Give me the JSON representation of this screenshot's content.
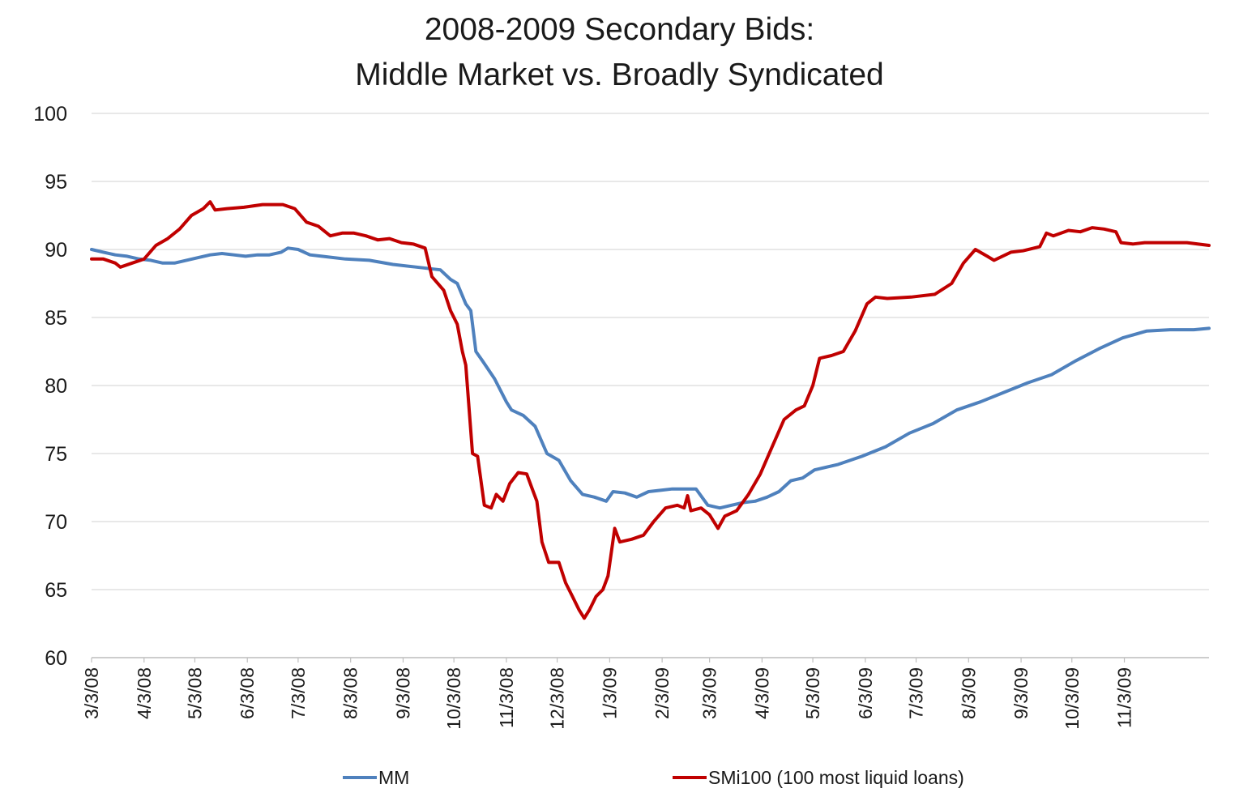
{
  "chart_data": {
    "type": "line",
    "title_line1": "2008-2009 Secondary Bids:",
    "title_line2": "Middle Market vs. Broadly Syndicated",
    "xlabel": "",
    "ylabel": "",
    "ylim": [
      60,
      100
    ],
    "yticks": [
      "100",
      "95",
      "90",
      "85",
      "80",
      "75",
      "70",
      "65",
      "60"
    ],
    "ytick_values": [
      100,
      95,
      90,
      85,
      80,
      75,
      70,
      65,
      60
    ],
    "xlim": [
      "2008-03-03",
      "2009-12-23"
    ],
    "xticks": [
      "3/3/08",
      "4/3/08",
      "5/3/08",
      "6/3/08",
      "7/3/08",
      "8/3/08",
      "9/3/08",
      "10/3/08",
      "11/3/08",
      "12/3/08",
      "1/3/09",
      "2/3/09",
      "3/3/09",
      "4/3/09",
      "5/3/09",
      "6/3/09",
      "7/3/09",
      "8/3/09",
      "9/3/09",
      "10/3/09",
      "11/3/09"
    ],
    "grid": "horizontal",
    "legend_position": "bottom",
    "series": [
      {
        "name": "MM",
        "color": "#4f81bd",
        "points": [
          [
            "2008-03-03",
            90.0
          ],
          [
            "2008-03-10",
            89.8
          ],
          [
            "2008-03-17",
            89.6
          ],
          [
            "2008-03-24",
            89.5
          ],
          [
            "2008-03-31",
            89.3
          ],
          [
            "2008-04-07",
            89.2
          ],
          [
            "2008-04-14",
            89.0
          ],
          [
            "2008-04-21",
            89.0
          ],
          [
            "2008-04-28",
            89.2
          ],
          [
            "2008-05-05",
            89.4
          ],
          [
            "2008-05-12",
            89.6
          ],
          [
            "2008-05-19",
            89.7
          ],
          [
            "2008-05-26",
            89.6
          ],
          [
            "2008-06-02",
            89.5
          ],
          [
            "2008-06-09",
            89.6
          ],
          [
            "2008-06-16",
            89.6
          ],
          [
            "2008-06-23",
            89.8
          ],
          [
            "2008-06-27",
            90.1
          ],
          [
            "2008-07-03",
            90.0
          ],
          [
            "2008-07-10",
            89.6
          ],
          [
            "2008-07-17",
            89.5
          ],
          [
            "2008-07-31",
            89.3
          ],
          [
            "2008-08-14",
            89.2
          ],
          [
            "2008-08-28",
            88.9
          ],
          [
            "2008-09-11",
            88.7
          ],
          [
            "2008-09-25",
            88.5
          ],
          [
            "2008-10-01",
            87.8
          ],
          [
            "2008-10-05",
            87.5
          ],
          [
            "2008-10-10",
            86.0
          ],
          [
            "2008-10-13",
            85.5
          ],
          [
            "2008-10-16",
            82.5
          ],
          [
            "2008-10-20",
            81.8
          ],
          [
            "2008-10-27",
            80.5
          ],
          [
            "2008-11-03",
            78.8
          ],
          [
            "2008-11-06",
            78.2
          ],
          [
            "2008-11-13",
            77.8
          ],
          [
            "2008-11-20",
            77.0
          ],
          [
            "2008-11-27",
            75.0
          ],
          [
            "2008-12-04",
            74.5
          ],
          [
            "2008-12-11",
            73.0
          ],
          [
            "2008-12-18",
            72.0
          ],
          [
            "2008-12-25",
            71.8
          ],
          [
            "2009-01-01",
            71.5
          ],
          [
            "2009-01-05",
            72.2
          ],
          [
            "2009-01-12",
            72.1
          ],
          [
            "2009-01-19",
            71.8
          ],
          [
            "2009-01-26",
            72.2
          ],
          [
            "2009-02-02",
            72.3
          ],
          [
            "2009-02-09",
            72.4
          ],
          [
            "2009-02-16",
            72.4
          ],
          [
            "2009-02-23",
            72.4
          ],
          [
            "2009-03-02",
            71.2
          ],
          [
            "2009-03-09",
            71.0
          ],
          [
            "2009-03-16",
            71.2
          ],
          [
            "2009-03-23",
            71.4
          ],
          [
            "2009-03-30",
            71.5
          ],
          [
            "2009-04-06",
            71.8
          ],
          [
            "2009-04-13",
            72.2
          ],
          [
            "2009-04-20",
            73.0
          ],
          [
            "2009-04-27",
            73.2
          ],
          [
            "2009-05-04",
            73.8
          ],
          [
            "2009-05-18",
            74.2
          ],
          [
            "2009-06-01",
            74.8
          ],
          [
            "2009-06-15",
            75.5
          ],
          [
            "2009-06-29",
            76.5
          ],
          [
            "2009-07-13",
            77.2
          ],
          [
            "2009-07-27",
            78.2
          ],
          [
            "2009-08-10",
            78.8
          ],
          [
            "2009-08-24",
            79.5
          ],
          [
            "2009-09-07",
            80.2
          ],
          [
            "2009-09-21",
            80.8
          ],
          [
            "2009-10-05",
            81.8
          ],
          [
            "2009-10-19",
            82.7
          ],
          [
            "2009-11-02",
            83.5
          ],
          [
            "2009-11-16",
            84.0
          ],
          [
            "2009-11-30",
            84.1
          ],
          [
            "2009-12-14",
            84.1
          ],
          [
            "2009-12-23",
            84.2
          ]
        ]
      },
      {
        "name": "SMi100 (100 most liquid loans)",
        "color": "#c00000",
        "points": [
          [
            "2008-03-03",
            89.3
          ],
          [
            "2008-03-10",
            89.3
          ],
          [
            "2008-03-17",
            89.0
          ],
          [
            "2008-03-20",
            88.7
          ],
          [
            "2008-03-27",
            89.0
          ],
          [
            "2008-04-03",
            89.3
          ],
          [
            "2008-04-10",
            90.3
          ],
          [
            "2008-04-17",
            90.8
          ],
          [
            "2008-04-24",
            91.5
          ],
          [
            "2008-05-01",
            92.5
          ],
          [
            "2008-05-08",
            93.0
          ],
          [
            "2008-05-12",
            93.5
          ],
          [
            "2008-05-15",
            92.9
          ],
          [
            "2008-05-22",
            93.0
          ],
          [
            "2008-06-01",
            93.1
          ],
          [
            "2008-06-12",
            93.3
          ],
          [
            "2008-06-24",
            93.3
          ],
          [
            "2008-07-01",
            93.0
          ],
          [
            "2008-07-08",
            92.0
          ],
          [
            "2008-07-15",
            91.7
          ],
          [
            "2008-07-22",
            91.0
          ],
          [
            "2008-07-29",
            91.2
          ],
          [
            "2008-08-05",
            91.2
          ],
          [
            "2008-08-12",
            91.0
          ],
          [
            "2008-08-19",
            90.7
          ],
          [
            "2008-08-26",
            90.8
          ],
          [
            "2008-09-02",
            90.5
          ],
          [
            "2008-09-09",
            90.4
          ],
          [
            "2008-09-16",
            90.1
          ],
          [
            "2008-09-20",
            88.0
          ],
          [
            "2008-09-27",
            87.0
          ],
          [
            "2008-10-01",
            85.5
          ],
          [
            "2008-10-05",
            84.5
          ],
          [
            "2008-10-08",
            82.5
          ],
          [
            "2008-10-10",
            81.5
          ],
          [
            "2008-10-14",
            75.0
          ],
          [
            "2008-10-17",
            74.8
          ],
          [
            "2008-10-21",
            71.2
          ],
          [
            "2008-10-25",
            71.0
          ],
          [
            "2008-10-28",
            72.0
          ],
          [
            "2008-11-01",
            71.5
          ],
          [
            "2008-11-05",
            72.8
          ],
          [
            "2008-11-10",
            73.6
          ],
          [
            "2008-11-15",
            73.5
          ],
          [
            "2008-11-18",
            72.5
          ],
          [
            "2008-11-21",
            71.5
          ],
          [
            "2008-11-24",
            68.5
          ],
          [
            "2008-11-28",
            67.0
          ],
          [
            "2008-12-04",
            67.0
          ],
          [
            "2008-12-08",
            65.5
          ],
          [
            "2008-12-12",
            64.5
          ],
          [
            "2008-12-16",
            63.5
          ],
          [
            "2008-12-19",
            62.9
          ],
          [
            "2008-12-22",
            63.5
          ],
          [
            "2008-12-26",
            64.5
          ],
          [
            "2008-12-30",
            65.0
          ],
          [
            "2009-01-02",
            66.0
          ],
          [
            "2009-01-06",
            69.5
          ],
          [
            "2009-01-09",
            68.5
          ],
          [
            "2009-01-16",
            68.7
          ],
          [
            "2009-01-23",
            69.0
          ],
          [
            "2009-01-29",
            70.0
          ],
          [
            "2009-02-05",
            71.0
          ],
          [
            "2009-02-12",
            71.2
          ],
          [
            "2009-02-16",
            71.0
          ],
          [
            "2009-02-18",
            71.9
          ],
          [
            "2009-02-20",
            70.8
          ],
          [
            "2009-02-26",
            71.0
          ],
          [
            "2009-03-03",
            70.5
          ],
          [
            "2009-03-08",
            69.5
          ],
          [
            "2009-03-12",
            70.4
          ],
          [
            "2009-03-19",
            70.8
          ],
          [
            "2009-03-26",
            72.0
          ],
          [
            "2009-04-02",
            73.5
          ],
          [
            "2009-04-09",
            75.5
          ],
          [
            "2009-04-16",
            77.5
          ],
          [
            "2009-04-23",
            78.2
          ],
          [
            "2009-04-28",
            78.5
          ],
          [
            "2009-05-03",
            80.0
          ],
          [
            "2009-05-07",
            82.0
          ],
          [
            "2009-05-14",
            82.2
          ],
          [
            "2009-05-21",
            82.5
          ],
          [
            "2009-05-28",
            84.0
          ],
          [
            "2009-06-04",
            86.0
          ],
          [
            "2009-06-09",
            86.5
          ],
          [
            "2009-06-16",
            86.4
          ],
          [
            "2009-06-30",
            86.5
          ],
          [
            "2009-07-14",
            86.7
          ],
          [
            "2009-07-24",
            87.5
          ],
          [
            "2009-07-31",
            89.0
          ],
          [
            "2009-08-07",
            90.0
          ],
          [
            "2009-08-14",
            89.5
          ],
          [
            "2009-08-18",
            89.2
          ],
          [
            "2009-08-28",
            89.8
          ],
          [
            "2009-09-04",
            89.9
          ],
          [
            "2009-09-14",
            90.2
          ],
          [
            "2009-09-18",
            91.2
          ],
          [
            "2009-09-22",
            91.0
          ],
          [
            "2009-10-01",
            91.4
          ],
          [
            "2009-10-08",
            91.3
          ],
          [
            "2009-10-15",
            91.6
          ],
          [
            "2009-10-22",
            91.5
          ],
          [
            "2009-10-29",
            91.3
          ],
          [
            "2009-11-01",
            90.5
          ],
          [
            "2009-11-08",
            90.4
          ],
          [
            "2009-11-15",
            90.5
          ],
          [
            "2009-11-29",
            90.5
          ],
          [
            "2009-12-10",
            90.5
          ],
          [
            "2009-12-23",
            90.3
          ]
        ]
      }
    ]
  }
}
